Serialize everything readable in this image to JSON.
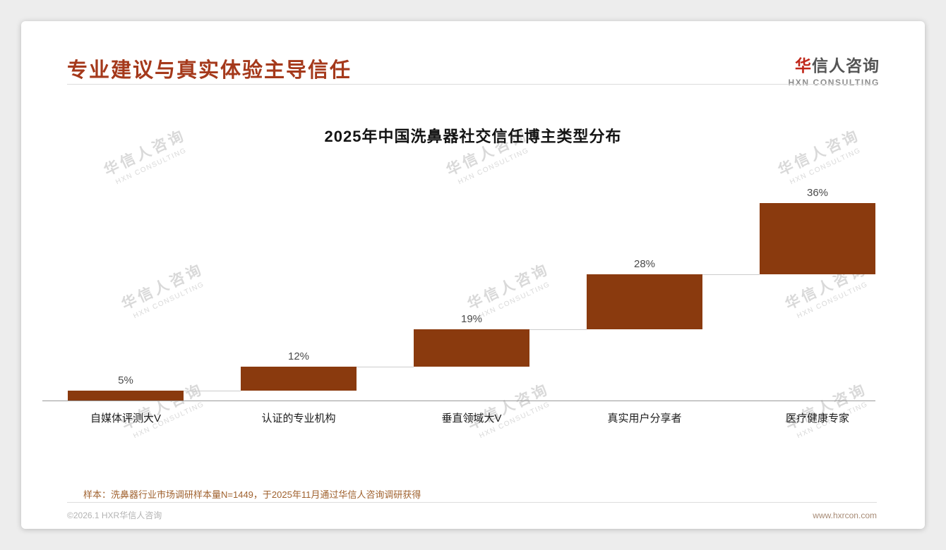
{
  "page": {
    "title": "专业建议与真实体验主导信任",
    "logo": {
      "accent_char": "华",
      "name_rest": "信人咨询",
      "subtitle": "HXN CONSULTING"
    },
    "watermark": {
      "line1": "华信人咨询",
      "line2": "HXN CONSULTING"
    },
    "footnote": "样本：洗鼻器行业市场调研样本量N=1449，于2025年11月通过华信人咨询调研获得",
    "footer": {
      "left": "©2026.1 HXR华信人咨询",
      "right": "www.hxrcon.com"
    }
  },
  "chart_data": {
    "type": "bar",
    "subtype": "waterfall-steps",
    "title": "2025年中国洗鼻器社交信任博主类型分布",
    "categories": [
      "自媒体评测大V",
      "认证的专业机构",
      "垂直领域大V",
      "真实用户分享者",
      "医疗健康专家"
    ],
    "values": [
      5,
      12,
      19,
      28,
      36
    ],
    "labels": [
      "5%",
      "12%",
      "19%",
      "28%",
      "36%"
    ],
    "cumulative": [
      5,
      17,
      36,
      64,
      100
    ],
    "unit": "%",
    "ylim": [
      0,
      100
    ],
    "grid": false,
    "legend": false,
    "bar_color": "#8a3a0e"
  },
  "colors": {
    "title": "#a5391b",
    "bar": "#8a3a0e",
    "connector": "#cccccc",
    "axis": "#9a9a9a",
    "footnote": "#a0622f"
  }
}
